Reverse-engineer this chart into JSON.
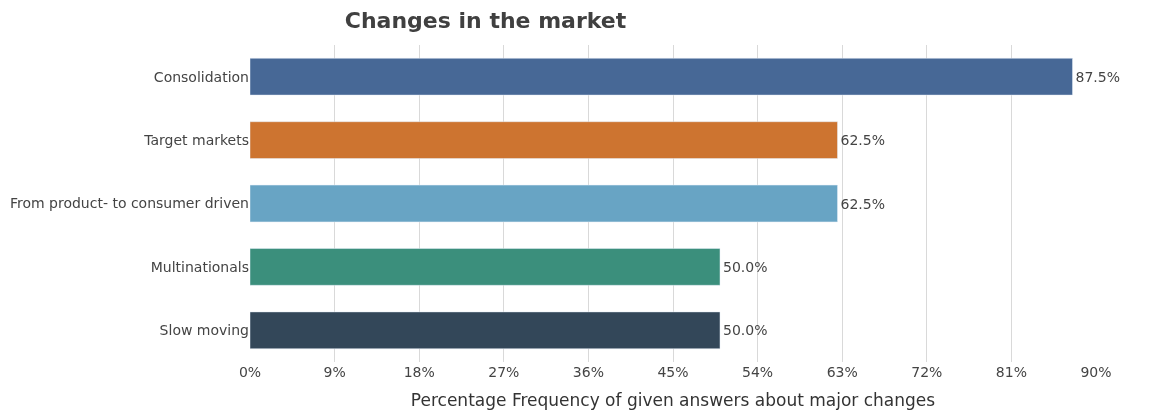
{
  "chart_data": {
    "type": "bar",
    "orientation": "horizontal",
    "title": "Changes in the market",
    "xlabel": "Percentage Frequency of given answers about major changes",
    "categories": [
      "Consolidation",
      "Target markets",
      "From product- to consumer driven",
      "Multinationals",
      "Slow moving"
    ],
    "values": [
      87.5,
      62.5,
      62.5,
      50.0,
      50.0
    ],
    "colors": [
      "#476896",
      "#cd7430",
      "#68a4c4",
      "#3b8f7c",
      "#334759"
    ],
    "value_labels": [
      "87.5%",
      "62.5%",
      "62.5%",
      "50.0%",
      "50.0%"
    ],
    "xlim": [
      0,
      90
    ],
    "xticks": [
      {
        "value": 0,
        "label": "0%"
      },
      {
        "value": 9,
        "label": "9%"
      },
      {
        "value": 18,
        "label": "18%"
      },
      {
        "value": 27,
        "label": "27%"
      },
      {
        "value": 36,
        "label": "36%"
      },
      {
        "value": 45,
        "label": "45%"
      },
      {
        "value": 54,
        "label": "54%"
      },
      {
        "value": 63,
        "label": "63%"
      },
      {
        "value": 72,
        "label": "72%"
      },
      {
        "value": 81,
        "label": "81%"
      },
      {
        "value": 90,
        "label": "90%"
      }
    ],
    "grid": "x"
  }
}
